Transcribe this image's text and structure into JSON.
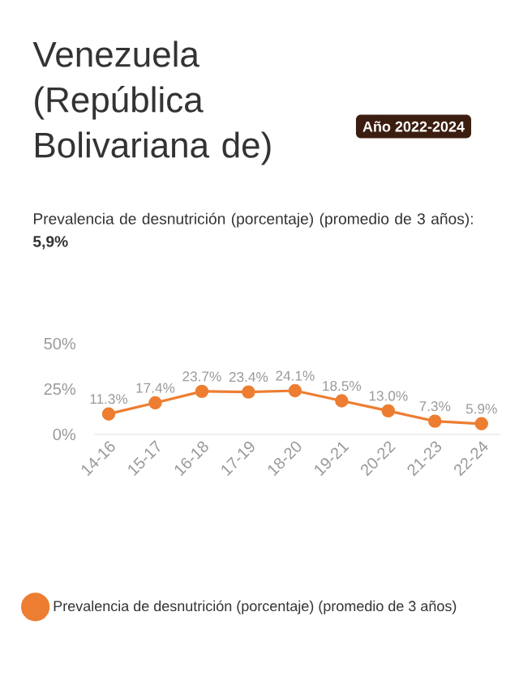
{
  "chart_data": {
    "type": "line",
    "title": "Venezuela (República Bolivariana de)",
    "subtitle": "Prevalencia de desnutrición (porcentaje) (promedio de 3 años): **5,9%**",
    "annotations": [
      "Año 2022-2024"
    ],
    "categories": [
      "14-16",
      "15-17",
      "16-18",
      "17-19",
      "18-20",
      "19-21",
      "20-22",
      "21-23",
      "22-24"
    ],
    "series": [
      {
        "name": "Prevalencia de desnutrición (porcentaje) (promedio de 3 años)",
        "color": "#ed7d31",
        "values": [
          11.3,
          17.4,
          23.7,
          23.4,
          24.1,
          18.5,
          13.0,
          7.3,
          5.9
        ],
        "value_labels": [
          "11.3%",
          "17.4%",
          "23.7%",
          "23.4%",
          "24.1%",
          "18.5%",
          "13.0%",
          "7.3%",
          "5.9%"
        ]
      }
    ],
    "ylim": [
      0,
      50
    ],
    "yticks": [
      {
        "value": 0,
        "label": "0%"
      },
      {
        "value": 25,
        "label": "25%"
      },
      {
        "value": 50,
        "label": "50%"
      }
    ],
    "grid": false,
    "legend": "bottom",
    "marker": "circle",
    "line_style": "solid"
  }
}
